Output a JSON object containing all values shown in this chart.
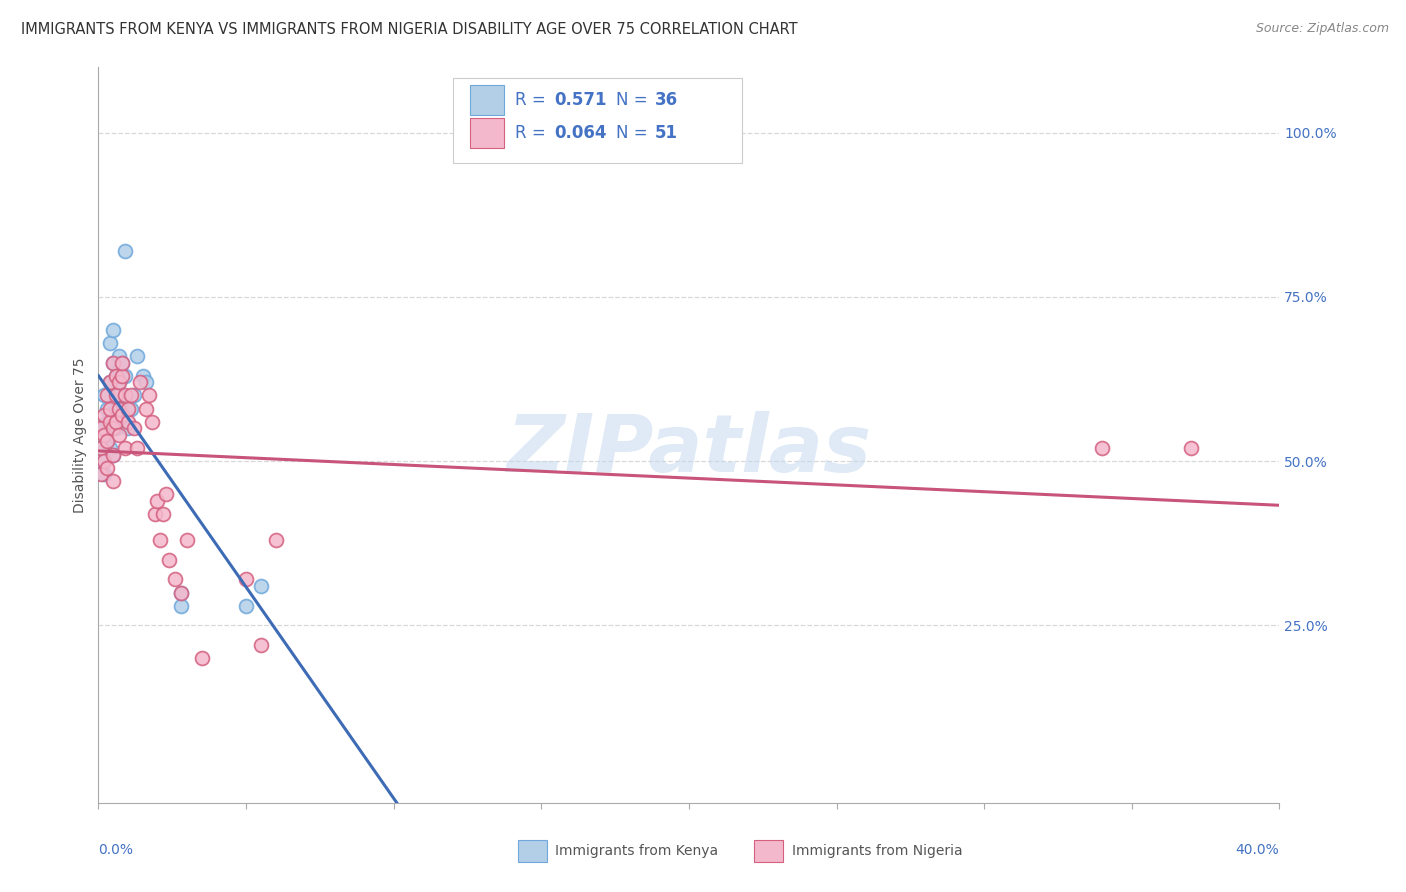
{
  "title": "IMMIGRANTS FROM KENYA VS IMMIGRANTS FROM NIGERIA DISABILITY AGE OVER 75 CORRELATION CHART",
  "source": "Source: ZipAtlas.com",
  "ylabel": "Disability Age Over 75",
  "xlim": [
    0.0,
    0.4
  ],
  "ylim": [
    -0.02,
    1.1
  ],
  "kenya_color": "#b3cfe8",
  "kenya_edge_color": "#6fa8dc",
  "nigeria_color": "#f4b8cc",
  "nigeria_edge_color": "#d46080",
  "trend_kenya_color": "#3d6bb5",
  "trend_nigeria_color": "#c8547a",
  "legend_text_color": "#4472c4",
  "watermark_color": "#c5d9f0",
  "watermark": "ZIPatlas",
  "background_color": "#ffffff",
  "grid_color": "#d8d8d8",
  "title_color": "#333333",
  "source_color": "#888888",
  "ylabel_color": "#555555",
  "kenya_x": [
    0.001,
    0.001,
    0.002,
    0.002,
    0.002,
    0.003,
    0.003,
    0.003,
    0.004,
    0.004,
    0.004,
    0.005,
    0.005,
    0.005,
    0.005,
    0.006,
    0.006,
    0.006,
    0.007,
    0.007,
    0.007,
    0.007,
    0.008,
    0.008,
    0.009,
    0.009,
    0.01,
    0.011,
    0.012,
    0.013,
    0.015,
    0.016,
    0.028,
    0.028,
    0.05,
    0.055
  ],
  "kenya_y": [
    0.5,
    0.52,
    0.48,
    0.55,
    0.6,
    0.53,
    0.58,
    0.56,
    0.52,
    0.62,
    0.68,
    0.51,
    0.55,
    0.65,
    0.7,
    0.63,
    0.55,
    0.58,
    0.6,
    0.64,
    0.66,
    0.62,
    0.58,
    0.65,
    0.63,
    0.82,
    0.55,
    0.58,
    0.6,
    0.66,
    0.63,
    0.62,
    0.28,
    0.3,
    0.28,
    0.31
  ],
  "nigeria_x": [
    0.001,
    0.001,
    0.001,
    0.002,
    0.002,
    0.002,
    0.003,
    0.003,
    0.003,
    0.004,
    0.004,
    0.004,
    0.005,
    0.005,
    0.005,
    0.005,
    0.006,
    0.006,
    0.006,
    0.007,
    0.007,
    0.007,
    0.008,
    0.008,
    0.008,
    0.009,
    0.009,
    0.01,
    0.01,
    0.011,
    0.012,
    0.013,
    0.014,
    0.016,
    0.017,
    0.018,
    0.019,
    0.02,
    0.021,
    0.022,
    0.023,
    0.024,
    0.026,
    0.028,
    0.03,
    0.035,
    0.05,
    0.055,
    0.06,
    0.34,
    0.37
  ],
  "nigeria_y": [
    0.48,
    0.52,
    0.55,
    0.5,
    0.54,
    0.57,
    0.49,
    0.53,
    0.6,
    0.56,
    0.58,
    0.62,
    0.47,
    0.51,
    0.55,
    0.65,
    0.6,
    0.56,
    0.63,
    0.58,
    0.54,
    0.62,
    0.57,
    0.63,
    0.65,
    0.6,
    0.52,
    0.56,
    0.58,
    0.6,
    0.55,
    0.52,
    0.62,
    0.58,
    0.6,
    0.56,
    0.42,
    0.44,
    0.38,
    0.42,
    0.45,
    0.35,
    0.32,
    0.3,
    0.38,
    0.2,
    0.32,
    0.22,
    0.38,
    0.52,
    0.52
  ],
  "title_fontsize": 10.5,
  "axis_label_fontsize": 10,
  "tick_fontsize": 10,
  "legend_fontsize": 12,
  "marker_size": 100
}
